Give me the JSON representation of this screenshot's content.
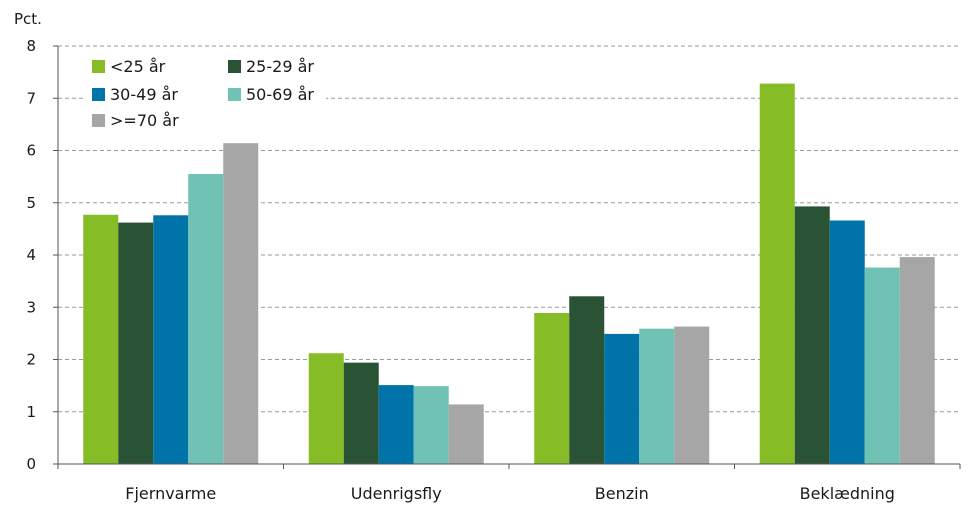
{
  "chart_data": {
    "type": "bar",
    "ylabel": "Pct.",
    "ylim": [
      0,
      8
    ],
    "yticks": [
      0,
      1,
      2,
      3,
      4,
      5,
      6,
      7,
      8
    ],
    "grid": true,
    "legend_position": "top-left",
    "categories": [
      "Fjernvarme",
      "Udenrigsfly",
      "Benzin",
      "Beklædning"
    ],
    "series": [
      {
        "name": "<25 år",
        "color": "#86bc25",
        "values": [
          4.77,
          2.12,
          2.89,
          7.28
        ]
      },
      {
        "name": "25-29 år",
        "color": "#2a5336",
        "values": [
          4.62,
          1.94,
          3.21,
          4.93
        ]
      },
      {
        "name": "30-49 år",
        "color": "#0074a8",
        "values": [
          4.76,
          1.51,
          2.49,
          4.66
        ]
      },
      {
        "name": "50-69 år",
        "color": "#70c3b4",
        "values": [
          5.55,
          1.49,
          2.59,
          3.76
        ]
      },
      {
        "name": ">=70 år",
        "color": "#a6a6a6",
        "values": [
          6.14,
          1.14,
          2.63,
          3.96
        ]
      }
    ]
  }
}
